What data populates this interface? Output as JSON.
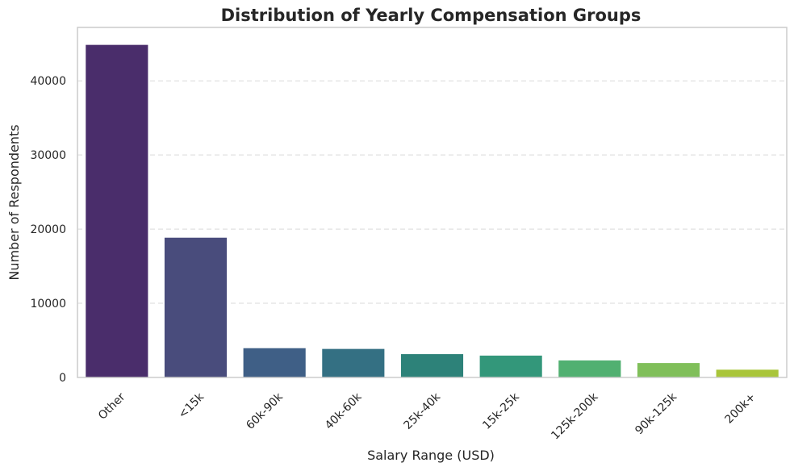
{
  "chart_data": {
    "type": "bar",
    "title": "Distribution of Yearly Compensation Groups",
    "xlabel": "Salary Range (USD)",
    "ylabel": "Number of Respondents",
    "categories": [
      "Other",
      "<15k",
      "60k-90k",
      "40k-60k",
      "25k-40k",
      "15k-25k",
      "125k-200k",
      "90k-125k",
      "200k+"
    ],
    "values": [
      44900,
      18900,
      4000,
      3900,
      3200,
      3000,
      2350,
      2000,
      1100
    ],
    "ylim": [
      0,
      47200
    ],
    "yticks": [
      0,
      10000,
      20000,
      30000,
      40000
    ],
    "ytick_labels": [
      "0",
      "10000",
      "20000",
      "30000",
      "40000"
    ],
    "grid": "y-dashed",
    "colors": [
      "#4a2d6b",
      "#494c7c",
      "#3f5f86",
      "#347083",
      "#2d8279",
      "#33977a",
      "#51b071",
      "#80bf5a",
      "#a9c53a"
    ]
  }
}
